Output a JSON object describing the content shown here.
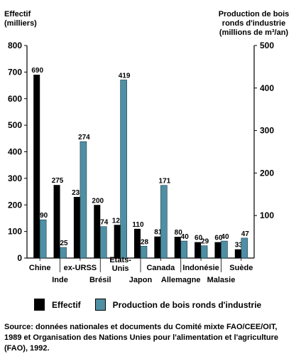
{
  "chart_data": {
    "type": "bar",
    "categories": [
      "Chine",
      "Inde",
      "ex-URSS",
      "Brésil",
      "Etats-\nUnis",
      "Japon",
      "Canada",
      "Allemagne",
      "Indonésie",
      "Malasie",
      "Suède"
    ],
    "series": [
      {
        "name": "Effectif",
        "color": "#000000",
        "axis": "left",
        "values": [
          690,
          275,
          230,
          200,
          125,
          110,
          81,
          80,
          60,
          60,
          33
        ]
      },
      {
        "name": "Production de bois ronds d'industrie",
        "color": "#4f8fa4",
        "axis": "right",
        "values": [
          90,
          25,
          274,
          74,
          419,
          28,
          171,
          40,
          29,
          40,
          47
        ]
      }
    ],
    "left_axis": {
      "label_line1": "Effectif",
      "label_line2": "(milliers)",
      "range": [
        0,
        800
      ],
      "ticks": [
        0,
        100,
        200,
        300,
        400,
        500,
        600,
        700,
        800
      ]
    },
    "right_axis": {
      "label_line1": "Production de bois",
      "label_line2": "ronds d'industrie",
      "label_line3": "(millions de m³/an)",
      "range": [
        0,
        500
      ],
      "ticks": [
        100,
        200,
        300,
        400,
        500
      ]
    }
  },
  "legend": {
    "effectif": "Effectif",
    "production": "Production de bois ronds d'industrie"
  },
  "source": "Source: données nationales et documents du Comité mixte FAO/CEE/OIT, 1989 et Organisation des Nations Unies pour l'alimentation et l'agriculture (FAO), 1992."
}
